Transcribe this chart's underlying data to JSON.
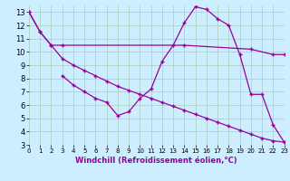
{
  "bg_color": "#cceeff",
  "line_color": "#990099",
  "xlim": [
    0,
    23
  ],
  "ylim": [
    3,
    13.5
  ],
  "xticks": [
    0,
    1,
    2,
    3,
    4,
    5,
    6,
    7,
    8,
    9,
    10,
    11,
    12,
    13,
    14,
    15,
    16,
    17,
    18,
    19,
    20,
    21,
    22,
    23
  ],
  "yticks": [
    3,
    4,
    5,
    6,
    7,
    8,
    9,
    10,
    11,
    12,
    13
  ],
  "xlabel": "Windchill (Refroidissement éolien,°C)",
  "series": [
    {
      "x": [
        0,
        1,
        2,
        3,
        14,
        20,
        22,
        23
      ],
      "y": [
        13,
        11.5,
        10.5,
        10.5,
        10.5,
        10.2,
        9.8,
        9.8
      ]
    },
    {
      "x": [
        0,
        1,
        2,
        3,
        4,
        5,
        6,
        7,
        8,
        9,
        10,
        11,
        12,
        13,
        14,
        15,
        16,
        17,
        18,
        19,
        20,
        21,
        22,
        23
      ],
      "y": [
        13,
        11.5,
        10.5,
        9.5,
        9.0,
        8.6,
        8.2,
        7.8,
        7.4,
        7.1,
        6.8,
        6.5,
        6.2,
        5.9,
        5.6,
        5.3,
        5.0,
        4.7,
        4.4,
        4.1,
        3.8,
        3.5,
        3.3,
        3.2
      ]
    },
    {
      "x": [
        3,
        4,
        5,
        6,
        7,
        8,
        9,
        10,
        11,
        12,
        13,
        14,
        15,
        16,
        17,
        18,
        19,
        20,
        21,
        22,
        23
      ],
      "y": [
        8.2,
        7.5,
        7.0,
        6.5,
        6.2,
        5.2,
        5.5,
        6.5,
        7.2,
        9.3,
        10.5,
        12.2,
        13.4,
        13.2,
        12.5,
        12.0,
        9.8,
        6.8,
        6.8,
        4.5,
        3.2
      ]
    }
  ]
}
